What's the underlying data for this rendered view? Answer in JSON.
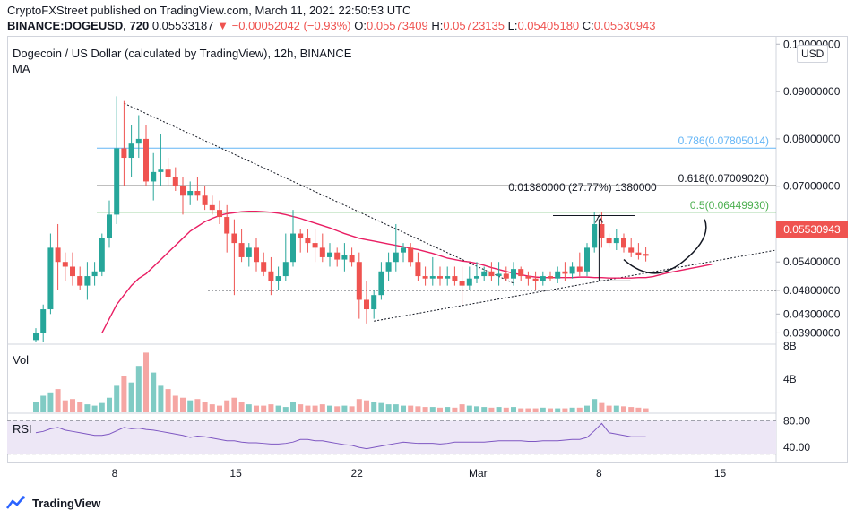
{
  "header": {
    "published": "CryptoFXStreet published on TradingView.com, March 11, 2021 22:50:53 UTC",
    "symbol": "BINANCE:DOGEUSD, 720",
    "last": "0.05533187",
    "change": "−0.00052042 (−0.93%)",
    "o_label": "O:",
    "o_value": "0.05573409",
    "h_label": "H:",
    "h_value": "0.05723135",
    "l_label": "L:",
    "l_value": "0.05405180",
    "c_label": "C:",
    "c_value": "0.05530943"
  },
  "title": "Dogecoin / US Dollar (calculated by TradingView), 12h, BINANCE",
  "ma_label": "MA",
  "vol_label": "Vol",
  "rsi_label": "RSI",
  "currency": "USD",
  "current_price": "0.05530943",
  "brand": "TradingView",
  "colors": {
    "up": "#26a69a",
    "down": "#ef5350",
    "ma": "#e91e63",
    "rsi": "#7e57c2",
    "rsi_band": "#ede7f6"
  },
  "chart_data": [
    {
      "type": "candlestick",
      "title": "Dogecoin / US Dollar (calculated by TradingView), 12h, BINANCE",
      "x_tick_labels": [
        "8",
        "15",
        "22",
        "Mar",
        "8",
        "15"
      ],
      "y_tick_labels": [
        "0.10000000",
        "0.09000000",
        "0.08000000",
        "0.07000000",
        "0.06000000",
        "0.05400000",
        "0.04800000",
        "0.04300000",
        "0.03900000"
      ],
      "ylim": [
        0.037,
        0.101
      ],
      "candles": [
        {
          "o": 0.0375,
          "h": 0.04,
          "l": 0.037,
          "c": 0.039
        },
        {
          "o": 0.039,
          "h": 0.045,
          "l": 0.037,
          "c": 0.044
        },
        {
          "o": 0.044,
          "h": 0.06,
          "l": 0.043,
          "c": 0.057
        },
        {
          "o": 0.057,
          "h": 0.062,
          "l": 0.048,
          "c": 0.054
        },
        {
          "o": 0.054,
          "h": 0.056,
          "l": 0.05,
          "c": 0.053
        },
        {
          "o": 0.053,
          "h": 0.056,
          "l": 0.049,
          "c": 0.051
        },
        {
          "o": 0.051,
          "h": 0.053,
          "l": 0.048,
          "c": 0.049
        },
        {
          "o": 0.049,
          "h": 0.054,
          "l": 0.046,
          "c": 0.051
        },
        {
          "o": 0.051,
          "h": 0.054,
          "l": 0.049,
          "c": 0.052
        },
        {
          "o": 0.052,
          "h": 0.06,
          "l": 0.051,
          "c": 0.059
        },
        {
          "o": 0.059,
          "h": 0.067,
          "l": 0.057,
          "c": 0.064
        },
        {
          "o": 0.064,
          "h": 0.089,
          "l": 0.062,
          "c": 0.078
        },
        {
          "o": 0.078,
          "h": 0.088,
          "l": 0.07,
          "c": 0.076
        },
        {
          "o": 0.076,
          "h": 0.083,
          "l": 0.072,
          "c": 0.079
        },
        {
          "o": 0.079,
          "h": 0.085,
          "l": 0.076,
          "c": 0.08
        },
        {
          "o": 0.08,
          "h": 0.083,
          "l": 0.07,
          "c": 0.071
        },
        {
          "o": 0.071,
          "h": 0.077,
          "l": 0.067,
          "c": 0.073
        },
        {
          "o": 0.073,
          "h": 0.081,
          "l": 0.07,
          "c": 0.0735
        },
        {
          "o": 0.0735,
          "h": 0.076,
          "l": 0.07,
          "c": 0.072
        },
        {
          "o": 0.072,
          "h": 0.074,
          "l": 0.069,
          "c": 0.07
        },
        {
          "o": 0.07,
          "h": 0.072,
          "l": 0.064,
          "c": 0.068
        },
        {
          "o": 0.068,
          "h": 0.071,
          "l": 0.066,
          "c": 0.069
        },
        {
          "o": 0.069,
          "h": 0.072,
          "l": 0.067,
          "c": 0.068
        },
        {
          "o": 0.068,
          "h": 0.07,
          "l": 0.065,
          "c": 0.066
        },
        {
          "o": 0.066,
          "h": 0.068,
          "l": 0.064,
          "c": 0.065
        },
        {
          "o": 0.065,
          "h": 0.067,
          "l": 0.062,
          "c": 0.0635
        },
        {
          "o": 0.0635,
          "h": 0.066,
          "l": 0.056,
          "c": 0.06
        },
        {
          "o": 0.06,
          "h": 0.063,
          "l": 0.047,
          "c": 0.058
        },
        {
          "o": 0.058,
          "h": 0.061,
          "l": 0.054,
          "c": 0.055
        },
        {
          "o": 0.055,
          "h": 0.058,
          "l": 0.053,
          "c": 0.057
        },
        {
          "o": 0.057,
          "h": 0.059,
          "l": 0.052,
          "c": 0.054
        },
        {
          "o": 0.054,
          "h": 0.056,
          "l": 0.051,
          "c": 0.052
        },
        {
          "o": 0.052,
          "h": 0.055,
          "l": 0.047,
          "c": 0.05
        },
        {
          "o": 0.05,
          "h": 0.053,
          "l": 0.048,
          "c": 0.051
        },
        {
          "o": 0.051,
          "h": 0.06,
          "l": 0.05,
          "c": 0.054
        },
        {
          "o": 0.054,
          "h": 0.065,
          "l": 0.053,
          "c": 0.06
        },
        {
          "o": 0.06,
          "h": 0.061,
          "l": 0.056,
          "c": 0.059
        },
        {
          "o": 0.059,
          "h": 0.061,
          "l": 0.056,
          "c": 0.058
        },
        {
          "o": 0.058,
          "h": 0.061,
          "l": 0.054,
          "c": 0.057
        },
        {
          "o": 0.057,
          "h": 0.06,
          "l": 0.054,
          "c": 0.055
        },
        {
          "o": 0.055,
          "h": 0.058,
          "l": 0.053,
          "c": 0.056
        },
        {
          "o": 0.056,
          "h": 0.057,
          "l": 0.053,
          "c": 0.0545
        },
        {
          "o": 0.0545,
          "h": 0.058,
          "l": 0.052,
          "c": 0.0555
        },
        {
          "o": 0.0555,
          "h": 0.057,
          "l": 0.053,
          "c": 0.054
        },
        {
          "o": 0.054,
          "h": 0.056,
          "l": 0.042,
          "c": 0.046
        },
        {
          "o": 0.046,
          "h": 0.05,
          "l": 0.041,
          "c": 0.044
        },
        {
          "o": 0.044,
          "h": 0.048,
          "l": 0.042,
          "c": 0.047
        },
        {
          "o": 0.047,
          "h": 0.054,
          "l": 0.046,
          "c": 0.052
        },
        {
          "o": 0.052,
          "h": 0.056,
          "l": 0.05,
          "c": 0.054
        },
        {
          "o": 0.054,
          "h": 0.062,
          "l": 0.052,
          "c": 0.056
        },
        {
          "o": 0.056,
          "h": 0.058,
          "l": 0.054,
          "c": 0.057
        },
        {
          "o": 0.057,
          "h": 0.058,
          "l": 0.053,
          "c": 0.054
        },
        {
          "o": 0.054,
          "h": 0.056,
          "l": 0.05,
          "c": 0.051
        },
        {
          "o": 0.051,
          "h": 0.053,
          "l": 0.049,
          "c": 0.0505
        },
        {
          "o": 0.0505,
          "h": 0.055,
          "l": 0.049,
          "c": 0.051
        },
        {
          "o": 0.051,
          "h": 0.053,
          "l": 0.049,
          "c": 0.0505
        },
        {
          "o": 0.0505,
          "h": 0.053,
          "l": 0.049,
          "c": 0.051
        },
        {
          "o": 0.051,
          "h": 0.053,
          "l": 0.049,
          "c": 0.05
        },
        {
          "o": 0.05,
          "h": 0.053,
          "l": 0.045,
          "c": 0.049
        },
        {
          "o": 0.049,
          "h": 0.053,
          "l": 0.048,
          "c": 0.0505
        },
        {
          "o": 0.0505,
          "h": 0.054,
          "l": 0.0495,
          "c": 0.051
        },
        {
          "o": 0.051,
          "h": 0.053,
          "l": 0.05,
          "c": 0.052
        },
        {
          "o": 0.052,
          "h": 0.054,
          "l": 0.05,
          "c": 0.051
        },
        {
          "o": 0.051,
          "h": 0.054,
          "l": 0.049,
          "c": 0.0515
        },
        {
          "o": 0.0515,
          "h": 0.053,
          "l": 0.05,
          "c": 0.0505
        },
        {
          "o": 0.0505,
          "h": 0.054,
          "l": 0.049,
          "c": 0.0525
        },
        {
          "o": 0.0525,
          "h": 0.053,
          "l": 0.05,
          "c": 0.051
        },
        {
          "o": 0.051,
          "h": 0.052,
          "l": 0.049,
          "c": 0.0505
        },
        {
          "o": 0.0505,
          "h": 0.052,
          "l": 0.048,
          "c": 0.05
        },
        {
          "o": 0.05,
          "h": 0.052,
          "l": 0.049,
          "c": 0.051
        },
        {
          "o": 0.051,
          "h": 0.052,
          "l": 0.05,
          "c": 0.0505
        },
        {
          "o": 0.0505,
          "h": 0.053,
          "l": 0.0495,
          "c": 0.052
        },
        {
          "o": 0.052,
          "h": 0.054,
          "l": 0.05,
          "c": 0.0515
        },
        {
          "o": 0.0515,
          "h": 0.054,
          "l": 0.0505,
          "c": 0.053
        },
        {
          "o": 0.053,
          "h": 0.056,
          "l": 0.051,
          "c": 0.052
        },
        {
          "o": 0.052,
          "h": 0.058,
          "l": 0.051,
          "c": 0.057
        },
        {
          "o": 0.057,
          "h": 0.0645,
          "l": 0.056,
          "c": 0.062
        },
        {
          "o": 0.062,
          "h": 0.0645,
          "l": 0.057,
          "c": 0.059
        },
        {
          "o": 0.059,
          "h": 0.06,
          "l": 0.057,
          "c": 0.058
        },
        {
          "o": 0.058,
          "h": 0.061,
          "l": 0.0565,
          "c": 0.059
        },
        {
          "o": 0.059,
          "h": 0.06,
          "l": 0.056,
          "c": 0.057
        },
        {
          "o": 0.057,
          "h": 0.059,
          "l": 0.055,
          "c": 0.056
        },
        {
          "o": 0.056,
          "h": 0.058,
          "l": 0.0545,
          "c": 0.0555
        },
        {
          "o": 0.0557,
          "h": 0.0572,
          "l": 0.0541,
          "c": 0.0553
        }
      ],
      "ma": [
        0.039,
        0.042,
        0.045,
        0.047,
        0.049,
        0.0505,
        0.0515,
        0.053,
        0.0545,
        0.056,
        0.0575,
        0.059,
        0.0605,
        0.0615,
        0.0625,
        0.0632,
        0.0638,
        0.0642,
        0.0644,
        0.0646,
        0.0647,
        0.0647,
        0.0646,
        0.0645,
        0.0643,
        0.064,
        0.0636,
        0.0632,
        0.0627,
        0.0622,
        0.0617,
        0.0612,
        0.0606,
        0.06,
        0.0595,
        0.059,
        0.0587,
        0.0584,
        0.0581,
        0.0578,
        0.0575,
        0.0572,
        0.0569,
        0.0566,
        0.0562,
        0.0558,
        0.0553,
        0.0548,
        0.0545,
        0.0542,
        0.054,
        0.0537,
        0.0533,
        0.0528,
        0.0524,
        0.052,
        0.0516,
        0.0513,
        0.051,
        0.0508,
        0.0507,
        0.0507,
        0.0507,
        0.0507,
        0.0507,
        0.0508,
        0.0508,
        0.0507,
        0.0507,
        0.0506,
        0.0506,
        0.0506,
        0.0506,
        0.0507,
        0.0507,
        0.0509,
        0.0513,
        0.0517,
        0.052,
        0.0523,
        0.0526,
        0.0529,
        0.0532,
        0.0535
      ],
      "volume": [
        0.15,
        0.25,
        0.3,
        0.35,
        0.18,
        0.2,
        0.15,
        0.12,
        0.1,
        0.14,
        0.22,
        0.4,
        0.55,
        0.45,
        0.7,
        0.9,
        0.6,
        0.4,
        0.35,
        0.25,
        0.22,
        0.18,
        0.2,
        0.15,
        0.12,
        0.1,
        0.18,
        0.22,
        0.15,
        0.12,
        0.1,
        0.1,
        0.12,
        0.1,
        0.08,
        0.15,
        0.12,
        0.1,
        0.1,
        0.12,
        0.1,
        0.09,
        0.1,
        0.09,
        0.2,
        0.18,
        0.15,
        0.14,
        0.12,
        0.12,
        0.1,
        0.1,
        0.09,
        0.08,
        0.08,
        0.07,
        0.08,
        0.07,
        0.12,
        0.1,
        0.09,
        0.08,
        0.07,
        0.08,
        0.07,
        0.08,
        0.06,
        0.06,
        0.06,
        0.07,
        0.06,
        0.06,
        0.06,
        0.07,
        0.07,
        0.1,
        0.2,
        0.14,
        0.1,
        0.1,
        0.09,
        0.08,
        0.07,
        0.06
      ],
      "vol_tick_labels": [
        "8B",
        "4B"
      ],
      "rsi": [
        62,
        64,
        68,
        70,
        66,
        64,
        62,
        60,
        58,
        58,
        60,
        65,
        70,
        68,
        69,
        67,
        66,
        64,
        62,
        60,
        58,
        55,
        57,
        56,
        54,
        52,
        50,
        50,
        48,
        47,
        47,
        46,
        45,
        45,
        46,
        48,
        52,
        52,
        50,
        50,
        48,
        46,
        44,
        43,
        40,
        38,
        40,
        42,
        44,
        46,
        48,
        47,
        46,
        46,
        46,
        45,
        46,
        48,
        48,
        48,
        48,
        48,
        49,
        50,
        50,
        50,
        50,
        49,
        49,
        50,
        50,
        50,
        51,
        52,
        52,
        55,
        65,
        76,
        62,
        60,
        58,
        56,
        56,
        56
      ],
      "rsi_tick_labels": [
        "80.00",
        "40.00"
      ],
      "fib_levels": [
        {
          "label": "0.786(0.07805014)",
          "value": 0.07805014,
          "color": "#64b5f6"
        },
        {
          "label": "0.618(0.07009020)",
          "value": 0.0700902,
          "color": "#000000"
        },
        {
          "label": "0.5(0.06449930)",
          "value": 0.0644993,
          "color": "#4caf50"
        }
      ],
      "horizontal_level": 0.048,
      "measure_label": "0.01380000 (27.77%) 1380000"
    }
  ]
}
